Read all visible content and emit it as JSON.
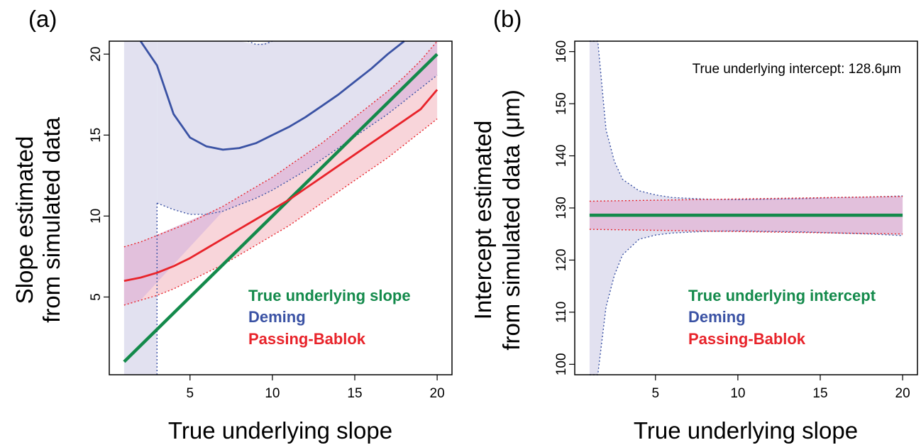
{
  "colors": {
    "true": "#138a4b",
    "deming": "#3a52a4",
    "pb": "#e8232a",
    "deming_band": "#e2e1f0",
    "pb_band": "#f8d5da",
    "overlap_band": "#e2c0dc"
  },
  "chart_data": [
    {
      "type": "line",
      "panel_label": "(a)",
      "xlabel": "True underlying slope",
      "ylabel": [
        "Slope estimated",
        "from simulated data"
      ],
      "xlim": [
        0.1,
        20.9
      ],
      "ylim": [
        0.2,
        20.8
      ],
      "xticks": [
        5,
        10,
        15,
        20
      ],
      "yticks": [
        5,
        10,
        15,
        20
      ],
      "legend": [
        "True underlying slope",
        "Deming",
        "Passing-Bablok"
      ],
      "legend_position": "bottom-right",
      "series": [
        {
          "name": "True underlying slope",
          "role": "true",
          "x": [
            1,
            20
          ],
          "y": [
            1,
            20
          ]
        },
        {
          "name": "Deming",
          "role": "deming",
          "x": [
            2.0,
            3,
            4,
            5,
            6,
            7,
            8,
            9,
            10,
            11,
            12,
            13,
            14,
            15,
            16,
            17,
            18
          ],
          "y": [
            20.8,
            19.3,
            16.3,
            14.85,
            14.3,
            14.1,
            14.2,
            14.5,
            15.0,
            15.5,
            16.1,
            16.8,
            17.5,
            18.3,
            19.1,
            20.0,
            20.8
          ]
        },
        {
          "name": "Passing-Bablok",
          "role": "pb",
          "x": [
            1,
            2,
            3,
            4,
            5,
            6,
            7,
            8,
            9,
            10,
            11,
            12,
            13,
            14,
            15,
            16,
            17,
            18,
            19,
            20
          ],
          "y": [
            6.0,
            6.2,
            6.5,
            6.9,
            7.4,
            8.0,
            8.6,
            9.2,
            9.8,
            10.4,
            11.0,
            11.7,
            12.4,
            13.1,
            13.8,
            14.5,
            15.2,
            15.9,
            16.6,
            17.8
          ]
        }
      ],
      "deming_band": {
        "lower_x": [
          3,
          4,
          5,
          6,
          7,
          8,
          9,
          10,
          11,
          12,
          13,
          14,
          15,
          16,
          17,
          18,
          19,
          20
        ],
        "lower_y": [
          10.8,
          10.4,
          10.1,
          10.1,
          10.3,
          10.7,
          11.1,
          11.6,
          12.2,
          12.8,
          13.5,
          14.2,
          14.9,
          15.6,
          16.3,
          17.1,
          17.9,
          18.7
        ],
        "upper_x": [
          8.5,
          9,
          9.5,
          10,
          20
        ],
        "upper_y": [
          20.8,
          20.6,
          20.6,
          20.8,
          20.8
        ]
      },
      "pb_band": {
        "x": [
          1,
          2,
          3,
          4,
          5,
          6,
          7,
          8,
          9,
          10,
          11,
          12,
          13,
          14,
          15,
          16,
          17,
          18,
          19,
          20
        ],
        "lower": [
          4.5,
          4.8,
          5.1,
          5.5,
          6.0,
          6.5,
          7.0,
          7.6,
          8.2,
          8.8,
          9.4,
          10.1,
          10.8,
          11.5,
          12.2,
          12.9,
          13.6,
          14.4,
          15.2,
          16.0
        ],
        "upper": [
          8.1,
          8.4,
          8.8,
          9.2,
          9.6,
          10.1,
          10.6,
          11.2,
          11.8,
          12.4,
          13.1,
          13.8,
          14.5,
          15.3,
          16.1,
          16.9,
          17.7,
          18.6,
          19.6,
          20.8
        ]
      }
    },
    {
      "type": "line",
      "panel_label": "(b)",
      "xlabel": "True underlying slope",
      "ylabel": [
        "Intercept estimated",
        "from simulated data (μm)"
      ],
      "xlim": [
        0.1,
        20.9
      ],
      "ylim": [
        98,
        162
      ],
      "xticks": [
        5,
        10,
        15,
        20
      ],
      "yticks": [
        100,
        110,
        120,
        130,
        140,
        150,
        160
      ],
      "annotation": "True underlying intercept: 128.6μm",
      "legend": [
        "True underlying intercept",
        "Deming",
        "Passing-Bablok"
      ],
      "legend_position": "bottom-right",
      "series": [
        {
          "name": "True underlying intercept",
          "role": "true",
          "x": [
            1,
            20
          ],
          "y": [
            128.6,
            128.6
          ]
        }
      ],
      "deming_band": {
        "upper_x": [
          1.0,
          1.5,
          2.0,
          2.5,
          3,
          4,
          5,
          6,
          8,
          10,
          12,
          14,
          16,
          18,
          20
        ],
        "upper_y": [
          162,
          162,
          145,
          139,
          135.5,
          133.3,
          132.5,
          132.0,
          131.7,
          131.6,
          131.7,
          131.8,
          132.0,
          132.1,
          132.3
        ],
        "lower_x": [
          1.0,
          1.5,
          2.0,
          2.5,
          3,
          4,
          5,
          6,
          8,
          10,
          12,
          14,
          16,
          18,
          20
        ],
        "lower_y": [
          98,
          98,
          111,
          117,
          121,
          124,
          124.8,
          125.2,
          125.5,
          125.6,
          125.5,
          125.4,
          125.2,
          125.0,
          124.7
        ]
      },
      "pb_band": {
        "x": [
          1,
          20
        ],
        "lower": [
          125.9,
          125.0
        ],
        "upper": [
          131.3,
          132.2
        ]
      }
    }
  ]
}
